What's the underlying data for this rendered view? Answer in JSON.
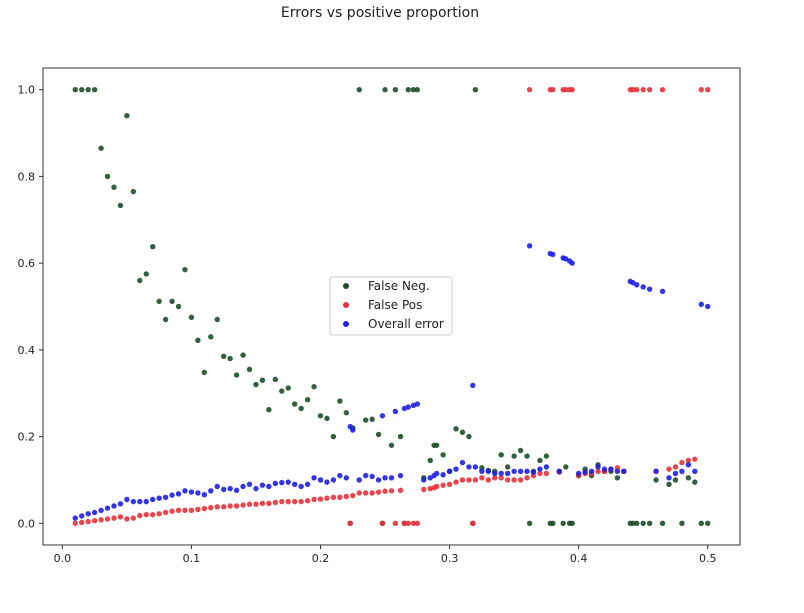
{
  "chart_data": {
    "type": "scatter",
    "title": "Errors vs positive proportion",
    "xlabel": "",
    "ylabel": "",
    "xlim": [
      -0.015,
      0.525
    ],
    "ylim": [
      -0.05,
      1.05
    ],
    "xticks": [
      0.0,
      0.1,
      0.2,
      0.3,
      0.4,
      0.5
    ],
    "xtick_labels": [
      "0.0",
      "0.1",
      "0.2",
      "0.3",
      "0.4",
      "0.5"
    ],
    "yticks": [
      0.0,
      0.2,
      0.4,
      0.6,
      0.8,
      1.0
    ],
    "ytick_labels": [
      "0.0",
      "0.2",
      "0.4",
      "0.6",
      "0.8",
      "1.0"
    ],
    "grid": false,
    "legend_position": "center",
    "series": [
      {
        "name": "False Neg.",
        "color": "#1e4d2b",
        "x": [
          0.01,
          0.015,
          0.02,
          0.025,
          0.03,
          0.035,
          0.04,
          0.045,
          0.05,
          0.055,
          0.06,
          0.065,
          0.07,
          0.075,
          0.08,
          0.085,
          0.09,
          0.095,
          0.1,
          0.105,
          0.11,
          0.115,
          0.12,
          0.125,
          0.13,
          0.135,
          0.14,
          0.145,
          0.15,
          0.155,
          0.16,
          0.165,
          0.17,
          0.175,
          0.18,
          0.185,
          0.19,
          0.195,
          0.2,
          0.205,
          0.21,
          0.215,
          0.22,
          0.223,
          0.225,
          0.23,
          0.235,
          0.24,
          0.245,
          0.248,
          0.25,
          0.255,
          0.258,
          0.262,
          0.265,
          0.268,
          0.272,
          0.275,
          0.28,
          0.285,
          0.288,
          0.29,
          0.295,
          0.3,
          0.305,
          0.31,
          0.315,
          0.318,
          0.32,
          0.325,
          0.33,
          0.335,
          0.34,
          0.345,
          0.35,
          0.355,
          0.36,
          0.362,
          0.365,
          0.37,
          0.375,
          0.378,
          0.38,
          0.385,
          0.388,
          0.39,
          0.393,
          0.395,
          0.4,
          0.405,
          0.41,
          0.415,
          0.42,
          0.425,
          0.43,
          0.435,
          0.44,
          0.442,
          0.445,
          0.45,
          0.455,
          0.46,
          0.465,
          0.47,
          0.475,
          0.48,
          0.485,
          0.49,
          0.495,
          0.5
        ],
        "y": [
          1.0,
          1.0,
          1.0,
          1.0,
          0.865,
          0.8,
          0.775,
          0.733,
          0.94,
          0.765,
          0.56,
          0.575,
          0.638,
          0.512,
          0.47,
          0.512,
          0.5,
          0.585,
          0.475,
          0.422,
          0.348,
          0.43,
          0.47,
          0.385,
          0.38,
          0.342,
          0.388,
          0.355,
          0.32,
          0.33,
          0.262,
          0.332,
          0.305,
          0.312,
          0.275,
          0.265,
          0.285,
          0.315,
          0.248,
          0.242,
          0.2,
          0.282,
          0.255,
          0.0,
          0.22,
          1.0,
          0.238,
          0.24,
          0.205,
          0.0,
          1.0,
          0.18,
          1.0,
          0.2,
          0.0,
          1.0,
          1.0,
          1.0,
          0.105,
          0.145,
          0.18,
          0.18,
          0.158,
          0.12,
          0.218,
          0.21,
          0.2,
          0.0,
          1.0,
          0.128,
          0.122,
          0.12,
          0.158,
          0.13,
          0.155,
          0.168,
          0.155,
          0.0,
          0.12,
          0.145,
          0.155,
          0.0,
          0.0,
          0.12,
          0.0,
          0.13,
          0.0,
          0.0,
          0.11,
          0.125,
          0.11,
          0.135,
          0.12,
          0.12,
          0.105,
          0.12,
          0.0,
          0.0,
          0.0,
          0.0,
          0.0,
          0.1,
          0.0,
          0.09,
          0.1,
          0.0,
          0.105,
          0.095,
          0.0,
          0.0
        ]
      },
      {
        "name": "False Pos",
        "color": "#e8313a",
        "x": [
          0.01,
          0.015,
          0.02,
          0.025,
          0.03,
          0.035,
          0.04,
          0.045,
          0.05,
          0.055,
          0.06,
          0.065,
          0.07,
          0.075,
          0.08,
          0.085,
          0.09,
          0.095,
          0.1,
          0.105,
          0.11,
          0.115,
          0.12,
          0.125,
          0.13,
          0.135,
          0.14,
          0.145,
          0.15,
          0.155,
          0.16,
          0.165,
          0.17,
          0.175,
          0.18,
          0.185,
          0.19,
          0.195,
          0.2,
          0.205,
          0.21,
          0.215,
          0.22,
          0.223,
          0.225,
          0.23,
          0.235,
          0.24,
          0.245,
          0.248,
          0.25,
          0.255,
          0.258,
          0.262,
          0.265,
          0.268,
          0.272,
          0.275,
          0.28,
          0.285,
          0.288,
          0.29,
          0.295,
          0.3,
          0.305,
          0.31,
          0.315,
          0.318,
          0.32,
          0.325,
          0.33,
          0.335,
          0.34,
          0.345,
          0.35,
          0.355,
          0.36,
          0.362,
          0.365,
          0.37,
          0.375,
          0.378,
          0.38,
          0.385,
          0.388,
          0.39,
          0.393,
          0.395,
          0.4,
          0.405,
          0.41,
          0.415,
          0.42,
          0.425,
          0.43,
          0.435,
          0.44,
          0.442,
          0.445,
          0.45,
          0.455,
          0.46,
          0.465,
          0.47,
          0.475,
          0.48,
          0.485,
          0.49,
          0.495,
          0.5
        ],
        "y": [
          0.0,
          0.002,
          0.004,
          0.006,
          0.008,
          0.01,
          0.012,
          0.015,
          0.01,
          0.012,
          0.018,
          0.02,
          0.02,
          0.022,
          0.025,
          0.028,
          0.03,
          0.03,
          0.03,
          0.032,
          0.034,
          0.036,
          0.038,
          0.038,
          0.04,
          0.04,
          0.042,
          0.044,
          0.044,
          0.046,
          0.046,
          0.048,
          0.05,
          0.05,
          0.05,
          0.05,
          0.052,
          0.055,
          0.056,
          0.058,
          0.06,
          0.06,
          0.062,
          0.0,
          0.064,
          0.07,
          0.07,
          0.07,
          0.072,
          0.0,
          0.074,
          0.075,
          0.0,
          0.076,
          0.0,
          0.0,
          0.0,
          0.0,
          0.078,
          0.08,
          0.082,
          0.085,
          0.088,
          0.09,
          0.095,
          0.1,
          0.1,
          0.0,
          0.1,
          0.105,
          0.1,
          0.105,
          0.105,
          0.1,
          0.1,
          0.1,
          0.105,
          1.0,
          0.11,
          0.115,
          0.115,
          1.0,
          1.0,
          0.118,
          1.0,
          1.0,
          1.0,
          1.0,
          0.11,
          0.115,
          0.115,
          0.12,
          0.12,
          0.125,
          0.128,
          0.12,
          1.0,
          1.0,
          1.0,
          1.0,
          1.0,
          0.12,
          1.0,
          0.125,
          0.13,
          0.14,
          0.145,
          0.148,
          1.0,
          1.0
        ]
      },
      {
        "name": "Overall error",
        "color": "#1f1fe6",
        "x": [
          0.01,
          0.015,
          0.02,
          0.025,
          0.03,
          0.035,
          0.04,
          0.045,
          0.05,
          0.055,
          0.06,
          0.065,
          0.07,
          0.075,
          0.08,
          0.085,
          0.09,
          0.095,
          0.1,
          0.105,
          0.11,
          0.115,
          0.12,
          0.125,
          0.13,
          0.135,
          0.14,
          0.145,
          0.15,
          0.155,
          0.16,
          0.165,
          0.17,
          0.175,
          0.18,
          0.185,
          0.19,
          0.195,
          0.2,
          0.205,
          0.21,
          0.215,
          0.22,
          0.223,
          0.225,
          0.23,
          0.235,
          0.24,
          0.245,
          0.248,
          0.25,
          0.255,
          0.258,
          0.262,
          0.265,
          0.268,
          0.272,
          0.275,
          0.28,
          0.285,
          0.288,
          0.29,
          0.295,
          0.3,
          0.305,
          0.31,
          0.315,
          0.318,
          0.32,
          0.325,
          0.33,
          0.335,
          0.34,
          0.345,
          0.35,
          0.355,
          0.36,
          0.362,
          0.365,
          0.37,
          0.375,
          0.378,
          0.38,
          0.385,
          0.388,
          0.39,
          0.393,
          0.395,
          0.4,
          0.405,
          0.41,
          0.415,
          0.42,
          0.425,
          0.43,
          0.435,
          0.44,
          0.442,
          0.445,
          0.45,
          0.455,
          0.46,
          0.465,
          0.47,
          0.475,
          0.48,
          0.485,
          0.49,
          0.495,
          0.5
        ],
        "y": [
          0.012,
          0.017,
          0.022,
          0.025,
          0.03,
          0.035,
          0.04,
          0.045,
          0.055,
          0.05,
          0.05,
          0.05,
          0.055,
          0.058,
          0.06,
          0.065,
          0.068,
          0.075,
          0.072,
          0.07,
          0.066,
          0.075,
          0.085,
          0.078,
          0.08,
          0.076,
          0.085,
          0.09,
          0.08,
          0.088,
          0.085,
          0.092,
          0.094,
          0.095,
          0.09,
          0.085,
          0.09,
          0.105,
          0.1,
          0.095,
          0.1,
          0.11,
          0.105,
          0.223,
          0.215,
          0.1,
          0.11,
          0.108,
          0.1,
          0.248,
          0.105,
          0.105,
          0.258,
          0.11,
          0.265,
          0.268,
          0.272,
          0.275,
          0.1,
          0.105,
          0.11,
          0.115,
          0.112,
          0.12,
          0.125,
          0.14,
          0.13,
          0.318,
          0.13,
          0.12,
          0.12,
          0.115,
          0.115,
          0.115,
          0.12,
          0.12,
          0.12,
          0.64,
          0.118,
          0.125,
          0.13,
          0.622,
          0.62,
          0.12,
          0.612,
          0.61,
          0.605,
          0.6,
          0.115,
          0.118,
          0.12,
          0.13,
          0.125,
          0.125,
          0.12,
          0.12,
          0.558,
          0.555,
          0.55,
          0.545,
          0.54,
          0.12,
          0.535,
          0.105,
          0.115,
          0.12,
          0.135,
          0.12,
          0.505,
          0.5
        ]
      }
    ]
  }
}
